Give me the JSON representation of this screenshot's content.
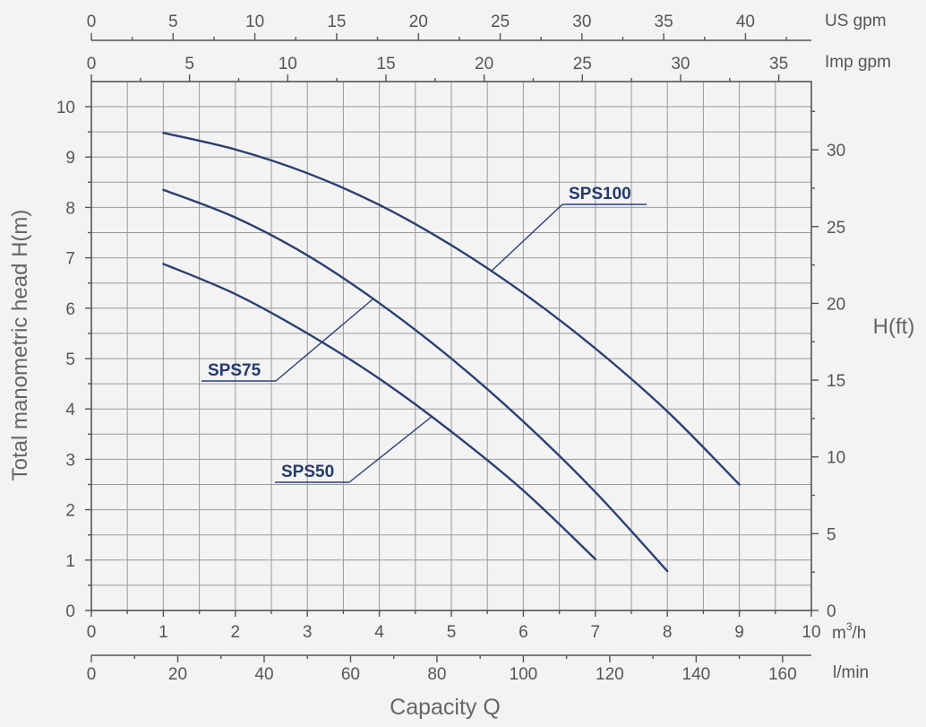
{
  "chart_data": {
    "type": "line",
    "ylabel": "Total manometric head H(m)",
    "ylabel_right": "H(ft)",
    "xlabel": "Capacity Q",
    "xunit_m3h": "m³/h",
    "xunit_m3h_base": "m",
    "xunit_m3h_sup": "3",
    "xunit_m3h_suffix": "/h",
    "xunit_lmin": "l/min",
    "xunit_usgpm": "US gpm",
    "xunit_impgpm": "Imp gpm",
    "xlim": [
      0,
      10
    ],
    "ylim": [
      0,
      10.5
    ],
    "grid": true,
    "x_m3h_ticks": [
      "0",
      "1",
      "2",
      "3",
      "4",
      "5",
      "6",
      "7",
      "8",
      "9",
      "10"
    ],
    "x_lmin_ticks": [
      "0",
      "20",
      "40",
      "60",
      "80",
      "100",
      "120",
      "140",
      "160"
    ],
    "x_usgpm_ticks": [
      "0",
      "5",
      "10",
      "15",
      "20",
      "25",
      "30",
      "35",
      "40"
    ],
    "x_impgpm_ticks": [
      "0",
      "5",
      "10",
      "15",
      "20",
      "25",
      "30",
      "35"
    ],
    "y_m_ticks": [
      "0",
      "1",
      "2",
      "3",
      "4",
      "5",
      "6",
      "7",
      "8",
      "9",
      "10"
    ],
    "y_ft_ticks": [
      "0",
      "5",
      "10",
      "15",
      "20",
      "25",
      "30"
    ],
    "series": [
      {
        "name": "SPS100",
        "color": "#2b3f72",
        "x": [
          1,
          2,
          3,
          4,
          5,
          6,
          7,
          8,
          9
        ],
        "y": [
          9.48,
          9.15,
          8.68,
          8.05,
          7.25,
          6.3,
          5.2,
          3.95,
          2.5
        ]
      },
      {
        "name": "SPS75",
        "color": "#2b3f72",
        "x": [
          1,
          2,
          3,
          4,
          5,
          6,
          7,
          8
        ],
        "y": [
          8.35,
          7.8,
          7.05,
          6.1,
          5.0,
          3.75,
          2.35,
          0.78
        ]
      },
      {
        "name": "SPS50",
        "color": "#2b3f72",
        "x": [
          1,
          2,
          3,
          4,
          5,
          6,
          7
        ],
        "y": [
          6.88,
          6.28,
          5.5,
          4.6,
          3.55,
          2.38,
          1.02
        ]
      }
    ]
  }
}
